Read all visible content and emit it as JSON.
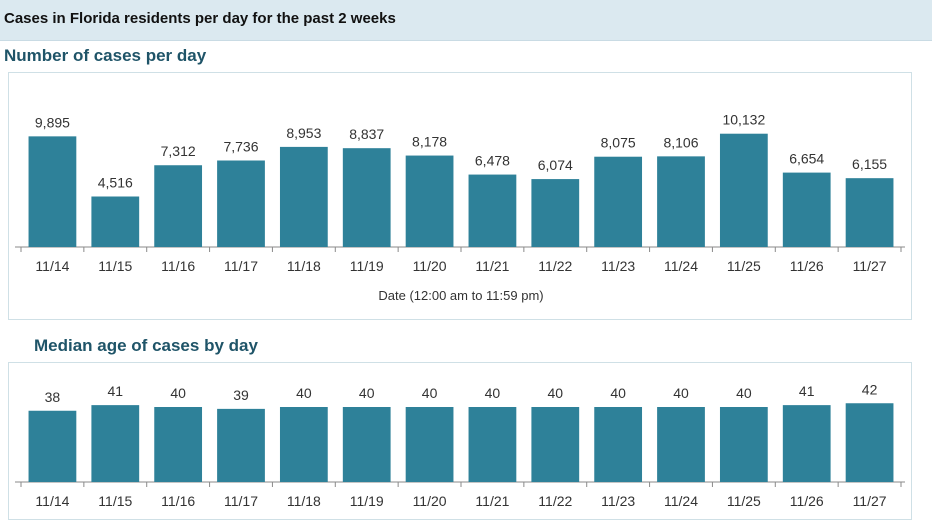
{
  "header": {
    "title": "Cases in Florida residents per day for the past 2 weeks"
  },
  "colors": {
    "bar": "#2e8199",
    "axis": "#8a8a8a",
    "header_bg": "#dbe9f0",
    "section_title": "#1f5468",
    "label": "#333333"
  },
  "chart_data": [
    {
      "type": "bar",
      "title": "Number of cases per day",
      "xlabel": "Date (12:00 am to 11:59 pm)",
      "ylabel": "",
      "categories": [
        "11/14",
        "11/15",
        "11/16",
        "11/17",
        "11/18",
        "11/19",
        "11/20",
        "11/21",
        "11/22",
        "11/23",
        "11/24",
        "11/25",
        "11/26",
        "11/27"
      ],
      "values": [
        9895,
        4516,
        7312,
        7736,
        8953,
        8837,
        8178,
        6478,
        6074,
        8075,
        8106,
        10132,
        6654,
        6155
      ],
      "value_labels": [
        "9,895",
        "4,516",
        "7,312",
        "7,736",
        "8,953",
        "8,837",
        "8,178",
        "6,478",
        "6,074",
        "8,075",
        "8,106",
        "10,132",
        "6,654",
        "6,155"
      ],
      "ylim": [
        0,
        11000
      ],
      "grid": false
    },
    {
      "type": "bar",
      "title": "Median age of cases by day",
      "xlabel": "",
      "ylabel": "",
      "categories": [
        "11/14",
        "11/15",
        "11/16",
        "11/17",
        "11/18",
        "11/19",
        "11/20",
        "11/21",
        "11/22",
        "11/23",
        "11/24",
        "11/25",
        "11/26",
        "11/27"
      ],
      "values": [
        38,
        41,
        40,
        39,
        40,
        40,
        40,
        40,
        40,
        40,
        40,
        40,
        41,
        42
      ],
      "value_labels": [
        "38",
        "41",
        "40",
        "39",
        "40",
        "40",
        "40",
        "40",
        "40",
        "40",
        "40",
        "40",
        "41",
        "42"
      ],
      "ylim": [
        0,
        48
      ],
      "grid": false
    }
  ]
}
